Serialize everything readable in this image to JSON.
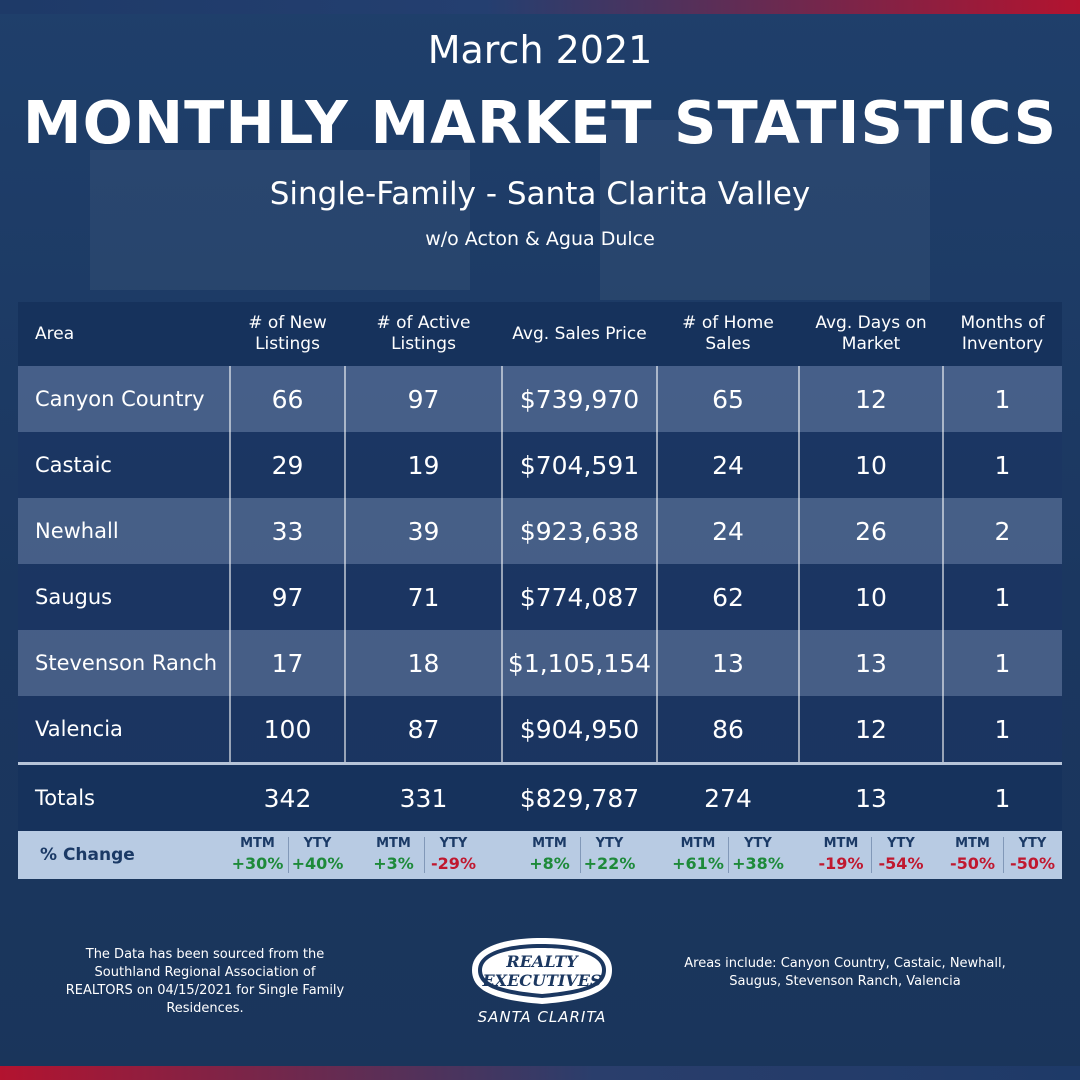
{
  "header": {
    "month": "March 2021",
    "title": "MONTHLY MARKET STATISTICS",
    "subtitle": "Single-Family - Santa Clarita Valley",
    "note": "w/o Acton & Agua Dulce"
  },
  "table": {
    "columns": [
      "Area",
      "# of New Listings",
      "# of Active Listings",
      "Avg. Sales Price",
      "# of Home Sales",
      "Avg. Days on Market",
      "Months of Inventory"
    ],
    "rows": [
      [
        "Canyon Country",
        "66",
        "97",
        "$739,970",
        "65",
        "12",
        "1"
      ],
      [
        "Castaic",
        "29",
        "19",
        "$704,591",
        "24",
        "10",
        "1"
      ],
      [
        "Newhall",
        "33",
        "39",
        "$923,638",
        "24",
        "26",
        "2"
      ],
      [
        "Saugus",
        "97",
        "71",
        "$774,087",
        "62",
        "10",
        "1"
      ],
      [
        "Stevenson Ranch",
        "17",
        "18",
        "$1,105,154",
        "13",
        "13",
        "1"
      ],
      [
        "Valencia",
        "100",
        "87",
        "$904,950",
        "86",
        "12",
        "1"
      ]
    ],
    "totals": [
      "Totals",
      "342",
      "331",
      "$829,787",
      "274",
      "13",
      "1"
    ],
    "change": {
      "label": "% Change",
      "mtm_label": "MTM",
      "yty_label": "YTY",
      "values": [
        [
          "+30%",
          "+40%"
        ],
        [
          "+3%",
          "-29%"
        ],
        [
          "+8%",
          "+22%"
        ],
        [
          "+61%",
          "+38%"
        ],
        [
          "-19%",
          "-54%"
        ],
        [
          "-50%",
          "-50%"
        ]
      ]
    }
  },
  "footer": {
    "source_note": "The Data has been sourced from the Southland Regional Association of REALTORS on 04/15/2021 for Single Family Residences.",
    "areas_note": "Areas include: Canyon Country, Castaic, Newhall, Saugus, Stevenson Ranch, Valencia",
    "logo_line1": "REALTY",
    "logo_line2": "EXECUTIVES",
    "logo_caption": "SANTA CLARITA"
  },
  "colors": {
    "background": "#1b3760",
    "accent_red": "#b3132f",
    "positive": "#1e8a3a",
    "negative": "#c0182f"
  }
}
